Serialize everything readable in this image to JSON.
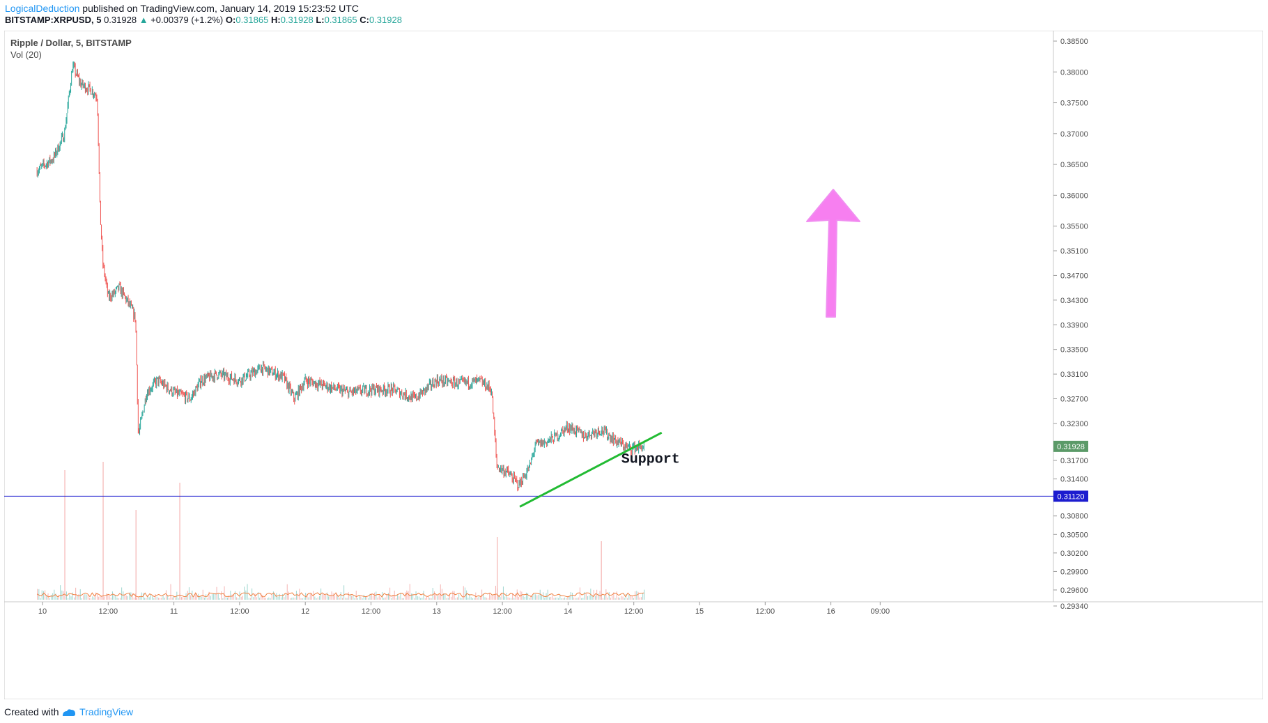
{
  "header": {
    "author": "LogicalDeduction",
    "published_text": "published on TradingView.com, January 14, 2019 15:23:52 UTC",
    "symbol": "BITSTAMP:XRPUSD, 5",
    "last_price": "0.31928",
    "change": "+0.00379 (+1.2%)",
    "o_label": "O:",
    "o_value": "0.31865",
    "h_label": "H:",
    "h_value": "0.31928",
    "l_label": "L:",
    "l_value": "0.31865",
    "c_label": "C:",
    "c_value": "0.31928"
  },
  "pane": {
    "title": "Ripple / Dollar, 5, BITSTAMP",
    "volume_label": "Vol (20)"
  },
  "footer": {
    "created_with": "Created with",
    "brand": "TradingView"
  },
  "colors": {
    "up": "#26a69a",
    "down": "#ef5350",
    "support_line": "#22bb33",
    "arrow": "#f77ff0",
    "horizontal_line": "#1c1ccf",
    "price_tag": "#5b9a68",
    "axis_text": "#4a4a4a",
    "vol_ma": "#f08040"
  },
  "chart_data": {
    "type": "candlestick",
    "title": "Ripple / Dollar, 5, BITSTAMP",
    "x_ticks": [
      "10",
      "12:00",
      "11",
      "12:00",
      "12",
      "12:00",
      "13",
      "12:00",
      "14",
      "12:00",
      "15",
      "12:00",
      "16",
      "09:00"
    ],
    "y_ticks": [
      "0.38500",
      "0.38000",
      "0.37500",
      "0.37000",
      "0.36500",
      "0.36000",
      "0.35500",
      "0.35100",
      "0.34700",
      "0.34300",
      "0.33900",
      "0.33500",
      "0.33100",
      "0.32700",
      "0.32300",
      "0.31700",
      "0.31400",
      "0.30800",
      "0.30500",
      "0.30200",
      "0.29900",
      "0.29600",
      "0.29340"
    ],
    "price_path": [
      {
        "t": "09 23:00",
        "p": 0.364
      },
      {
        "t": "10 02:00",
        "p": 0.366
      },
      {
        "t": "10 04:00",
        "p": 0.37
      },
      {
        "t": "10 05:30",
        "p": 0.381
      },
      {
        "t": "10 07:00",
        "p": 0.378
      },
      {
        "t": "10 09:00",
        "p": 0.377
      },
      {
        "t": "10 10:00",
        "p": 0.376
      },
      {
        "t": "10 10:30",
        "p": 0.3575
      },
      {
        "t": "10 11:00",
        "p": 0.349
      },
      {
        "t": "10 12:00",
        "p": 0.3435
      },
      {
        "t": "10 13:00",
        "p": 0.344
      },
      {
        "t": "10 14:00",
        "p": 0.345
      },
      {
        "t": "10 16:00",
        "p": 0.342
      },
      {
        "t": "10 17:00",
        "p": 0.34
      },
      {
        "t": "10 17:30",
        "p": 0.321
      },
      {
        "t": "10 19:00",
        "p": 0.328
      },
      {
        "t": "10 21:00",
        "p": 0.33
      },
      {
        "t": "11 00:00",
        "p": 0.328
      },
      {
        "t": "11 03:00",
        "p": 0.327
      },
      {
        "t": "11 05:00",
        "p": 0.33
      },
      {
        "t": "11 08:00",
        "p": 0.331
      },
      {
        "t": "11 12:00",
        "p": 0.33
      },
      {
        "t": "11 16:00",
        "p": 0.332
      },
      {
        "t": "11 20:00",
        "p": 0.3305
      },
      {
        "t": "11 22:00",
        "p": 0.327
      },
      {
        "t": "12 00:00",
        "p": 0.33
      },
      {
        "t": "12 04:00",
        "p": 0.329
      },
      {
        "t": "12 08:00",
        "p": 0.328
      },
      {
        "t": "12 12:00",
        "p": 0.3285
      },
      {
        "t": "12 16:00",
        "p": 0.3285
      },
      {
        "t": "12 20:00",
        "p": 0.327
      },
      {
        "t": "13 00:00",
        "p": 0.33
      },
      {
        "t": "13 04:00",
        "p": 0.3295
      },
      {
        "t": "13 08:00",
        "p": 0.3298
      },
      {
        "t": "13 10:00",
        "p": 0.3285
      },
      {
        "t": "13 11:00",
        "p": 0.316
      },
      {
        "t": "13 13:00",
        "p": 0.315
      },
      {
        "t": "13 15:00",
        "p": 0.313
      },
      {
        "t": "13 17:00",
        "p": 0.316
      },
      {
        "t": "13 18:00",
        "p": 0.3195
      },
      {
        "t": "13 20:00",
        "p": 0.32
      },
      {
        "t": "13 22:00",
        "p": 0.321
      },
      {
        "t": "14 00:00",
        "p": 0.3225
      },
      {
        "t": "14 03:00",
        "p": 0.321
      },
      {
        "t": "14 06:00",
        "p": 0.322
      },
      {
        "t": "14 09:00",
        "p": 0.32
      },
      {
        "t": "14 11:00",
        "p": 0.319
      },
      {
        "t": "14 14:00",
        "p": 0.3193
      }
    ],
    "volume_spikes": [
      {
        "t": "10 04:00",
        "v": 0.62
      },
      {
        "t": "10 11:00",
        "v": 0.66
      },
      {
        "t": "10 17:00",
        "v": 0.43
      },
      {
        "t": "11 01:00",
        "v": 0.56
      },
      {
        "t": "13 11:00",
        "v": 0.3
      },
      {
        "t": "14 06:00",
        "v": 0.28
      }
    ],
    "horizontal_line": {
      "value": "0.31120"
    },
    "current_price_label": "0.31928",
    "annotations": {
      "support_text": "Support"
    },
    "grid": false
  }
}
